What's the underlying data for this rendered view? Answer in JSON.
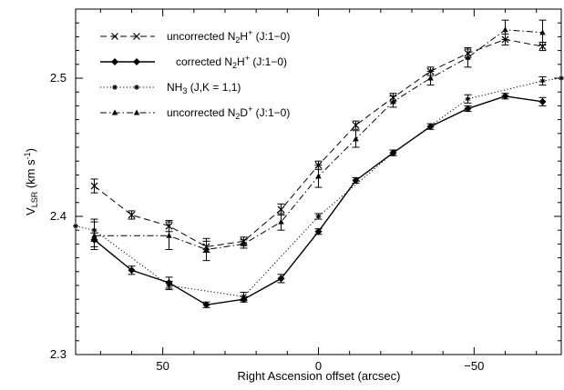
{
  "chart_data": {
    "type": "line",
    "xlabel": "Right Ascension offset (arcsec)",
    "ylabel_main": "V",
    "ylabel_sub": "LSR",
    "ylabel_unit": "(km s",
    "ylabel_exp": "-1",
    "ylabel_close": ")",
    "xlim": [
      78,
      -78
    ],
    "ylim": [
      2.3,
      2.55
    ],
    "x_ticks": [
      {
        "value": 50,
        "label": "50"
      },
      {
        "value": 0,
        "label": "0"
      },
      {
        "value": -50,
        "label": "−50"
      }
    ],
    "y_ticks": [
      {
        "value": 2.3,
        "label": "2.3"
      },
      {
        "value": 2.4,
        "label": "2.4"
      },
      {
        "value": 2.5,
        "label": "2.5"
      }
    ],
    "legend_position": "top-left",
    "series": [
      {
        "name": "uncorrected N2H+ (J:1−0)",
        "legend": {
          "pre": "uncorrected N",
          "sub": "2",
          "mid": "H",
          "sup": "+",
          "post": " (J:1−0)"
        },
        "style": "dashed",
        "marker": "x",
        "x": [
          72,
          60,
          48,
          36,
          24,
          12,
          0,
          -12,
          -24,
          -36,
          -48,
          -60,
          -72
        ],
        "y": [
          2.422,
          2.401,
          2.393,
          2.378,
          2.382,
          2.405,
          2.437,
          2.466,
          2.486,
          2.505,
          2.518,
          2.528,
          2.523
        ],
        "err": [
          0.005,
          0.003,
          0.004,
          0.004,
          0.003,
          0.004,
          0.003,
          0.003,
          0.003,
          0.003,
          0.003,
          0.004,
          0.003
        ]
      },
      {
        "name": "corrected N2H+ (J:1−0)",
        "legend": {
          "pre": "   corrected N",
          "sub": "2",
          "mid": "H",
          "sup": "+",
          "post": " (J:1−0)"
        },
        "style": "solid",
        "marker": "diamond",
        "x": [
          72,
          60,
          48,
          36,
          24,
          12,
          0,
          -12,
          -24,
          -36,
          -48,
          -60,
          -72
        ],
        "y": [
          2.383,
          2.361,
          2.352,
          2.336,
          2.34,
          2.355,
          2.389,
          2.426,
          2.446,
          2.465,
          2.478,
          2.487,
          2.483
        ],
        "err": [
          0.005,
          0.003,
          0.004,
          0.002,
          0.002,
          0.003,
          0.002,
          0.002,
          0.002,
          0.002,
          0.002,
          0.002,
          0.003
        ]
      },
      {
        "name": "NH3 (J,K = 1,1)",
        "legend": {
          "pre": "NH",
          "sub": "3",
          "mid": " (J,K = 1,1)",
          "sup": "",
          "post": ""
        },
        "style": "dotted",
        "marker": "star",
        "x": [
          78,
          72,
          48,
          24,
          0,
          -24,
          -48,
          -72,
          -78
        ],
        "y": [
          2.393,
          2.39,
          2.35,
          2.342,
          2.4,
          2.446,
          2.485,
          2.498,
          2.5
        ],
        "err": [
          0,
          0.008,
          0.003,
          0.003,
          0.002,
          0.002,
          0.003,
          0.003,
          0
        ]
      },
      {
        "name": "uncorrected N2D+ (J:1−0)",
        "legend": {
          "pre": "uncorrected N",
          "sub": "2",
          "mid": "D",
          "sup": "+",
          "post": " (J:1−0)"
        },
        "style": "dashdot",
        "marker": "triangle",
        "x": [
          72,
          48,
          36,
          24,
          12,
          0,
          -12,
          -24,
          -36,
          -48,
          -60,
          -72
        ],
        "y": [
          2.386,
          2.386,
          2.376,
          2.38,
          2.396,
          2.429,
          2.456,
          2.483,
          2.5,
          2.515,
          2.535,
          2.533
        ],
        "err": [
          0.01,
          0.01,
          0.008,
          0.003,
          0.006,
          0.008,
          0.006,
          0.004,
          0.005,
          0.007,
          0.007,
          0.009
        ]
      }
    ]
  }
}
